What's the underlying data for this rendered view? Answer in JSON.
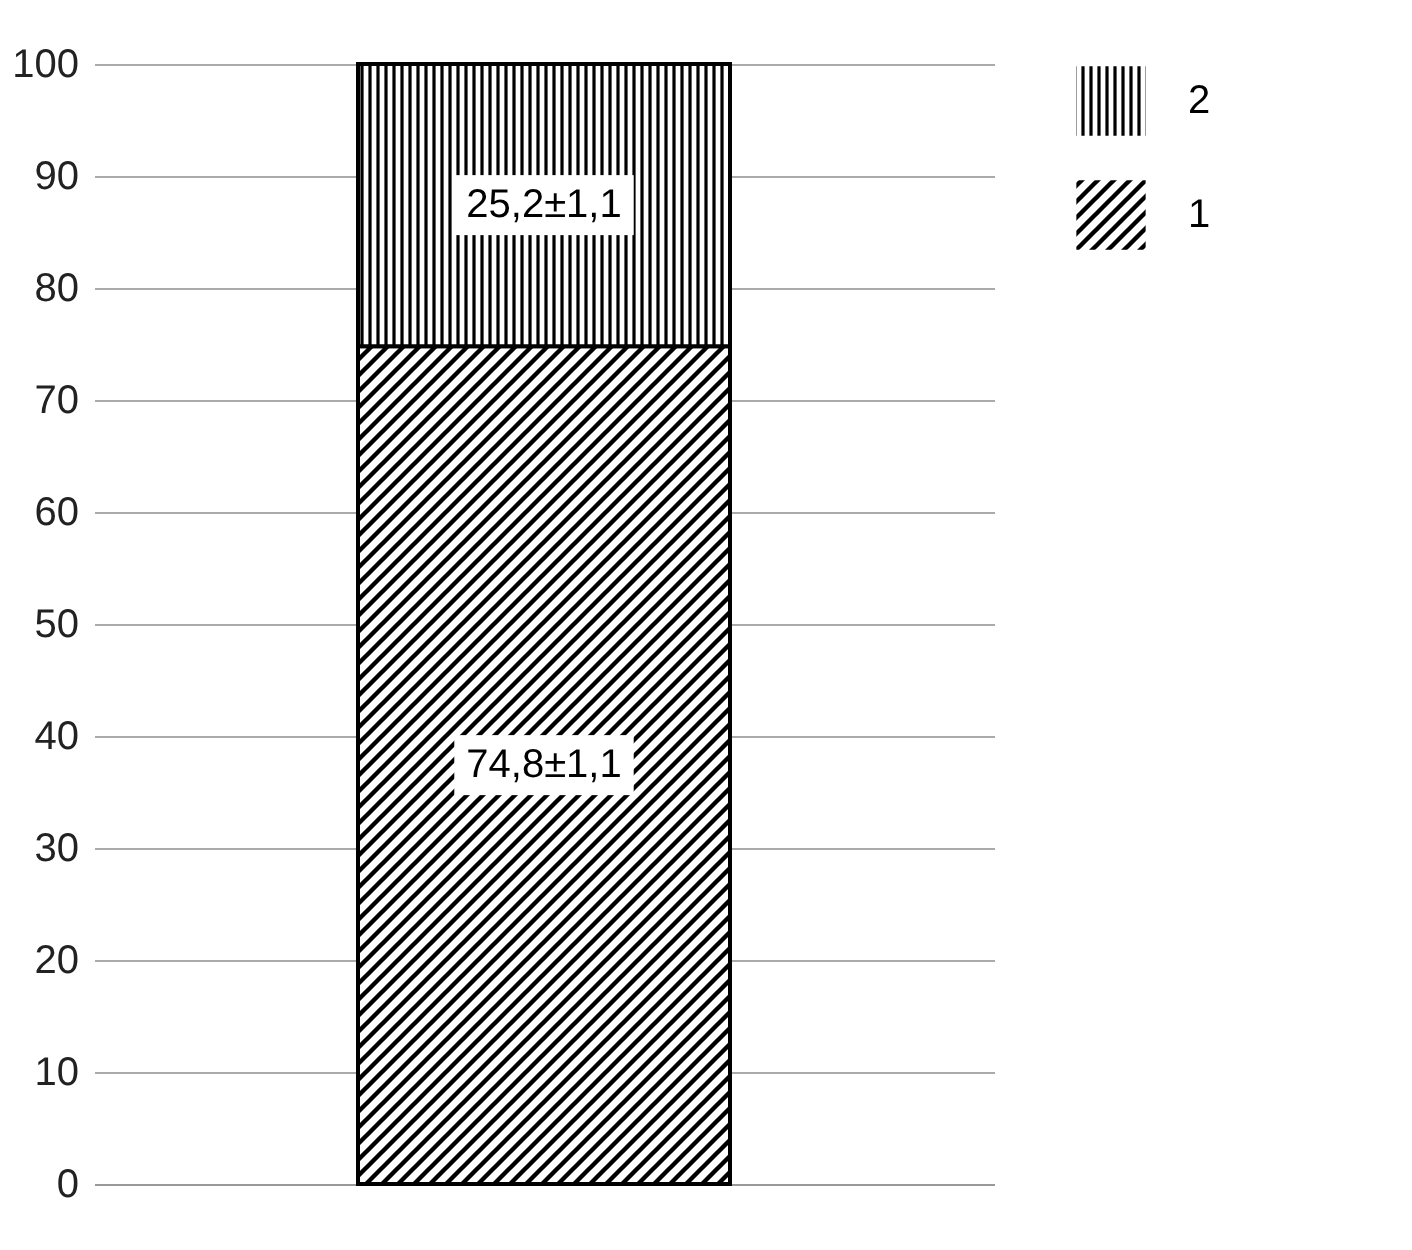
{
  "chart_data": {
    "type": "bar",
    "stacked": true,
    "categories": [
      null
    ],
    "series": [
      {
        "name": "1",
        "color": "#000000",
        "values": [
          74.8
        ],
        "value_labels": [
          "74,8±1,1"
        ]
      },
      {
        "name": "2",
        "color": "#000000",
        "values": [
          25.2
        ],
        "value_labels": [
          "25,2±1,1"
        ]
      }
    ],
    "ylim": [
      0,
      100
    ],
    "yticks": [
      0,
      10,
      20,
      30,
      40,
      50,
      60,
      70,
      80,
      90,
      100
    ],
    "grid": "y",
    "legend": "right"
  }
}
